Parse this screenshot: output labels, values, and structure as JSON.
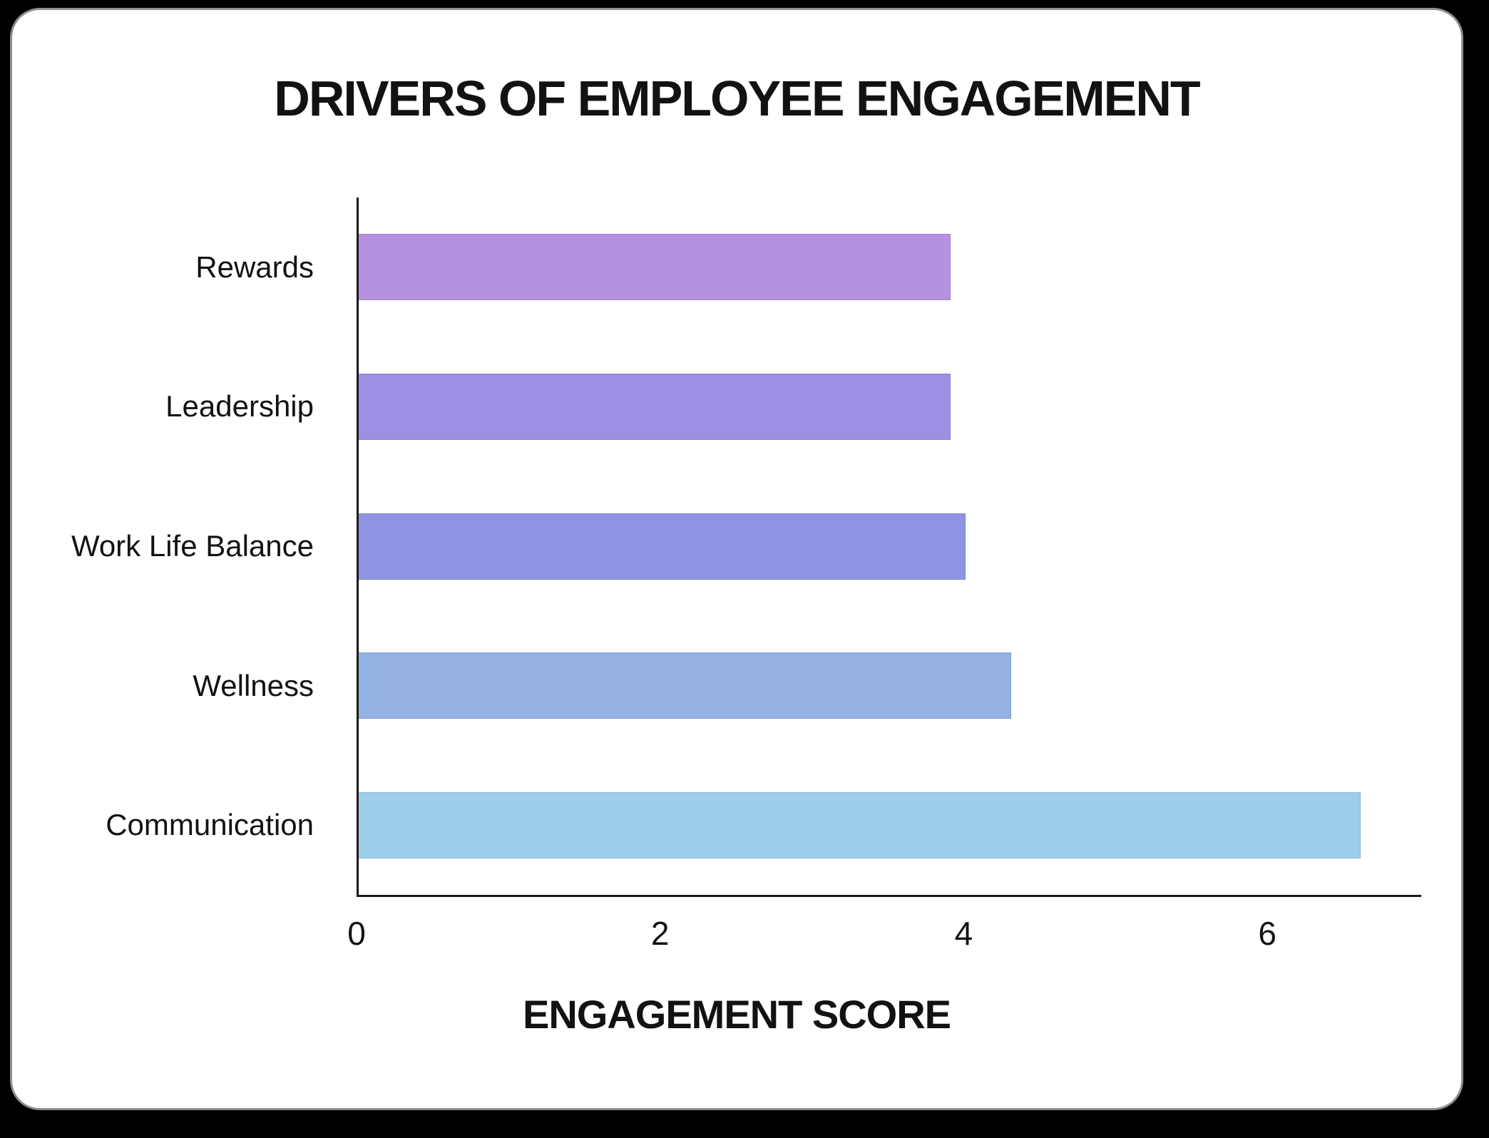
{
  "window": {
    "background_color": "#000000",
    "card_background": "#ffffff",
    "card_border_color": "#8e8e8e"
  },
  "chart_data": {
    "type": "bar",
    "orientation": "horizontal",
    "title": "DRIVERS OF EMPLOYEE ENGAGEMENT",
    "xlabel": "ENGAGEMENT SCORE",
    "ylabel": "",
    "categories": [
      "Rewards",
      "Leadership",
      "Work Life Balance",
      "Wellness",
      "Communication"
    ],
    "values": [
      3.9,
      3.9,
      4.0,
      4.3,
      6.6
    ],
    "bar_colors": [
      "#b491e1",
      "#9d90e4",
      "#8e94e1",
      "#94b1e4",
      "#9ecdea"
    ],
    "xlim": [
      0,
      7
    ],
    "xticks": [
      0,
      2,
      4,
      6
    ],
    "grid": false,
    "legend": false,
    "axis_color": "#1a1a1a",
    "text_color": "#121212"
  }
}
